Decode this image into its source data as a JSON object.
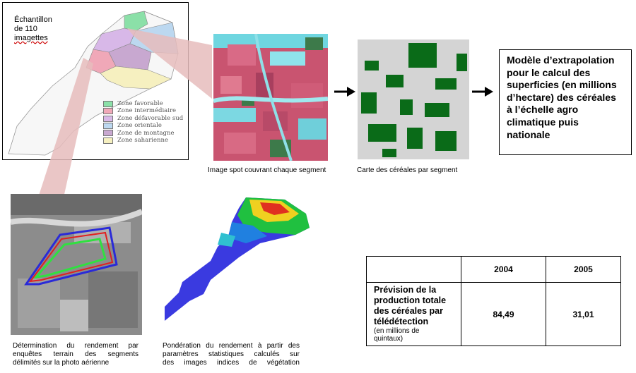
{
  "map_panel": {
    "sample_label": [
      "Échantillon",
      "de 110",
      "imagettes"
    ],
    "legend": [
      {
        "label": "Zone favorable",
        "color": "#8be0a8"
      },
      {
        "label": "Zone intermédiaire",
        "color": "#f0a8b8"
      },
      {
        "label": "Zone défavorable sud",
        "color": "#d8b8e8"
      },
      {
        "label": "Zone orientale",
        "color": "#bcd8f0"
      },
      {
        "label": "Zone de montagne",
        "color": "#c8a8d0"
      },
      {
        "label": "Zone saharienne",
        "color": "#f6f0c0"
      }
    ]
  },
  "captions": {
    "spot": "Image spot couvrant chaque segment",
    "cereal_map": "Carte des céréales par segment",
    "yield_lines": [
      "Détermination du rendement par",
      "enquêtes terrain des segments",
      "délimités sur la photo aérienne"
    ],
    "weighting_lines": [
      "Pondération du rendement à partir des",
      "paramètres statistiques calculés sur",
      "des images indices de végétation"
    ]
  },
  "model_box": "Modèle d’extrapolation pour le calcul des superficies (en millions d’hectare) des céréales à l’échelle agro climatique puis nationale",
  "results_table": {
    "years": [
      "2004",
      "2005"
    ],
    "row_label_lines": [
      "Prévision de la",
      "production totale",
      "des céréales par",
      "télédétection"
    ],
    "row_unit_lines": [
      "(en millions de",
      "quintaux)"
    ],
    "values": [
      "84,49",
      "31,01"
    ]
  }
}
